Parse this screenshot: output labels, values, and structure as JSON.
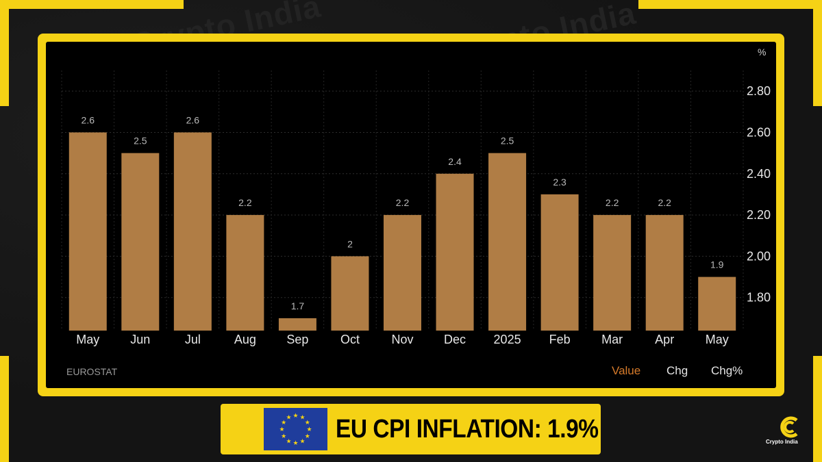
{
  "chart_data": {
    "type": "bar",
    "categories": [
      "May",
      "Jun",
      "Jul",
      "Aug",
      "Sep",
      "Oct",
      "Nov",
      "Dec",
      "2025",
      "Feb",
      "Mar",
      "Apr",
      "May"
    ],
    "values": [
      2.6,
      2.5,
      2.6,
      2.2,
      1.7,
      2,
      2.2,
      2.4,
      2.5,
      2.3,
      2.2,
      2.2,
      1.9
    ],
    "value_labels": [
      "2.6",
      "2.5",
      "2.6",
      "2.2",
      "1.7",
      "2",
      "2.2",
      "2.4",
      "2.5",
      "2.3",
      "2.2",
      "2.2",
      "1.9"
    ],
    "y_ticks": [
      "2.80",
      "2.60",
      "2.40",
      "2.20",
      "2.00",
      "1.80"
    ],
    "y_tick_values": [
      2.8,
      2.6,
      2.4,
      2.2,
      2.0,
      1.8
    ],
    "ylim": [
      1.64,
      2.9
    ],
    "y_unit": "%",
    "y_axis_side": "right",
    "grid": true,
    "bar_color": "#b07d45",
    "title": "",
    "xlabel": "",
    "ylabel": ""
  },
  "source": "EUROSTAT",
  "toggles": [
    {
      "label": "Value",
      "active": true
    },
    {
      "label": "Chg",
      "active": false
    },
    {
      "label": "Chg%",
      "active": false
    }
  ],
  "banner": {
    "text": "EU CPI INFLATION: 1.9%",
    "flag": "eu-flag-icon"
  },
  "brand": {
    "name": "Crypto India",
    "watermark": "Crypto India",
    "accent": "#f5d215"
  }
}
